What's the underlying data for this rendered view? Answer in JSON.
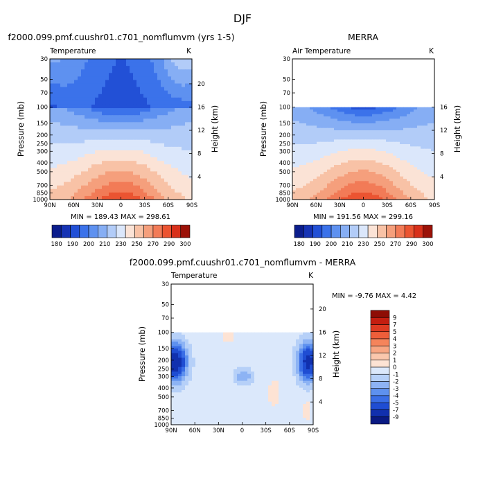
{
  "figure": {
    "title": "DJF"
  },
  "chart_data": [
    {
      "type": "heatmap",
      "title": "f2000.099.pmf.cuushr01.c701_nomflumvm (yrs 1-5)",
      "variable": "Temperature",
      "units": "K",
      "xlabel": "",
      "ylabel": "Pressure (mb)",
      "ylabel_right": "Height (km)",
      "x_ticks": [
        "90N",
        "60N",
        "30N",
        "0",
        "30S",
        "60S",
        "90S"
      ],
      "y_ticks": [
        "30",
        "50",
        "70",
        "100",
        "150",
        "200",
        "250",
        "300",
        "400",
        "500",
        "700",
        "850",
        "1000"
      ],
      "y2_ticks": [
        "20",
        "16",
        "12",
        "8",
        "4"
      ],
      "stats_text": "MIN = 189.43   MAX = 298.61",
      "min": 189.43,
      "max": 298.61,
      "colorbar_labels": [
        "180",
        "190",
        "200",
        "210",
        "230",
        "250",
        "270",
        "290",
        "300"
      ]
    },
    {
      "type": "heatmap",
      "title": "MERRA",
      "variable": "Air Temperature",
      "units": "K",
      "xlabel": "",
      "ylabel": "Pressure (mb)",
      "ylabel_right": "Height (km)",
      "x_ticks": [
        "90N",
        "60N",
        "30N",
        "0",
        "30S",
        "60S",
        "90S"
      ],
      "y_ticks": [
        "30",
        "50",
        "70",
        "100",
        "150",
        "200",
        "250",
        "300",
        "400",
        "500",
        "700",
        "850",
        "1000"
      ],
      "y2_ticks": [
        "16",
        "12",
        "8",
        "4"
      ],
      "stats_text": "MIN = 191.56   MAX = 299.16",
      "min": 191.56,
      "max": 299.16,
      "data_top_mb": 100,
      "colorbar_labels": [
        "180",
        "190",
        "200",
        "210",
        "230",
        "250",
        "270",
        "290",
        "300"
      ]
    },
    {
      "type": "heatmap",
      "title": "f2000.099.pmf.cuushr01.c701_nomflumvm - MERRA",
      "variable": "Temperature",
      "units": "K",
      "xlabel": "",
      "ylabel": "Pressure (mb)",
      "ylabel_right": "Height (km)",
      "x_ticks": [
        "90N",
        "60N",
        "30N",
        "0",
        "30S",
        "60S",
        "90S"
      ],
      "y_ticks": [
        "30",
        "50",
        "70",
        "100",
        "150",
        "200",
        "250",
        "300",
        "400",
        "500",
        "700",
        "850",
        "1000"
      ],
      "y2_ticks": [
        "20",
        "16",
        "12",
        "8",
        "4"
      ],
      "stats_text": "MIN =   -9.76   MAX =    4.42",
      "min": -9.76,
      "max": 4.42,
      "data_top_mb": 100,
      "colorbar_labels": [
        "9",
        "7",
        "5",
        "4",
        "3",
        "2",
        "1",
        "0",
        "-1",
        "-2",
        "-3",
        "-4",
        "-5",
        "-7",
        "-9"
      ]
    }
  ],
  "colors": {
    "temp_scale": [
      "#0b1d8c",
      "#1633b4",
      "#2250d6",
      "#3b72ea",
      "#5e91f0",
      "#86aef4",
      "#b2ccf8",
      "#dbe7fb",
      "#fbe3d6",
      "#f8c2a6",
      "#f59f7c",
      "#f27b57",
      "#eb5431",
      "#d8301a",
      "#9c1208"
    ],
    "diff_scale": [
      "#8e0d05",
      "#c41e10",
      "#de3b22",
      "#ee5e3a",
      "#f5845b",
      "#f8a683",
      "#fac7ad",
      "#fde3d4",
      "#dbe8fb",
      "#b6d0f8",
      "#8db3f4",
      "#5e91ef",
      "#3a6ee6",
      "#1f4dd3",
      "#1130ae",
      "#0a1a83"
    ]
  }
}
